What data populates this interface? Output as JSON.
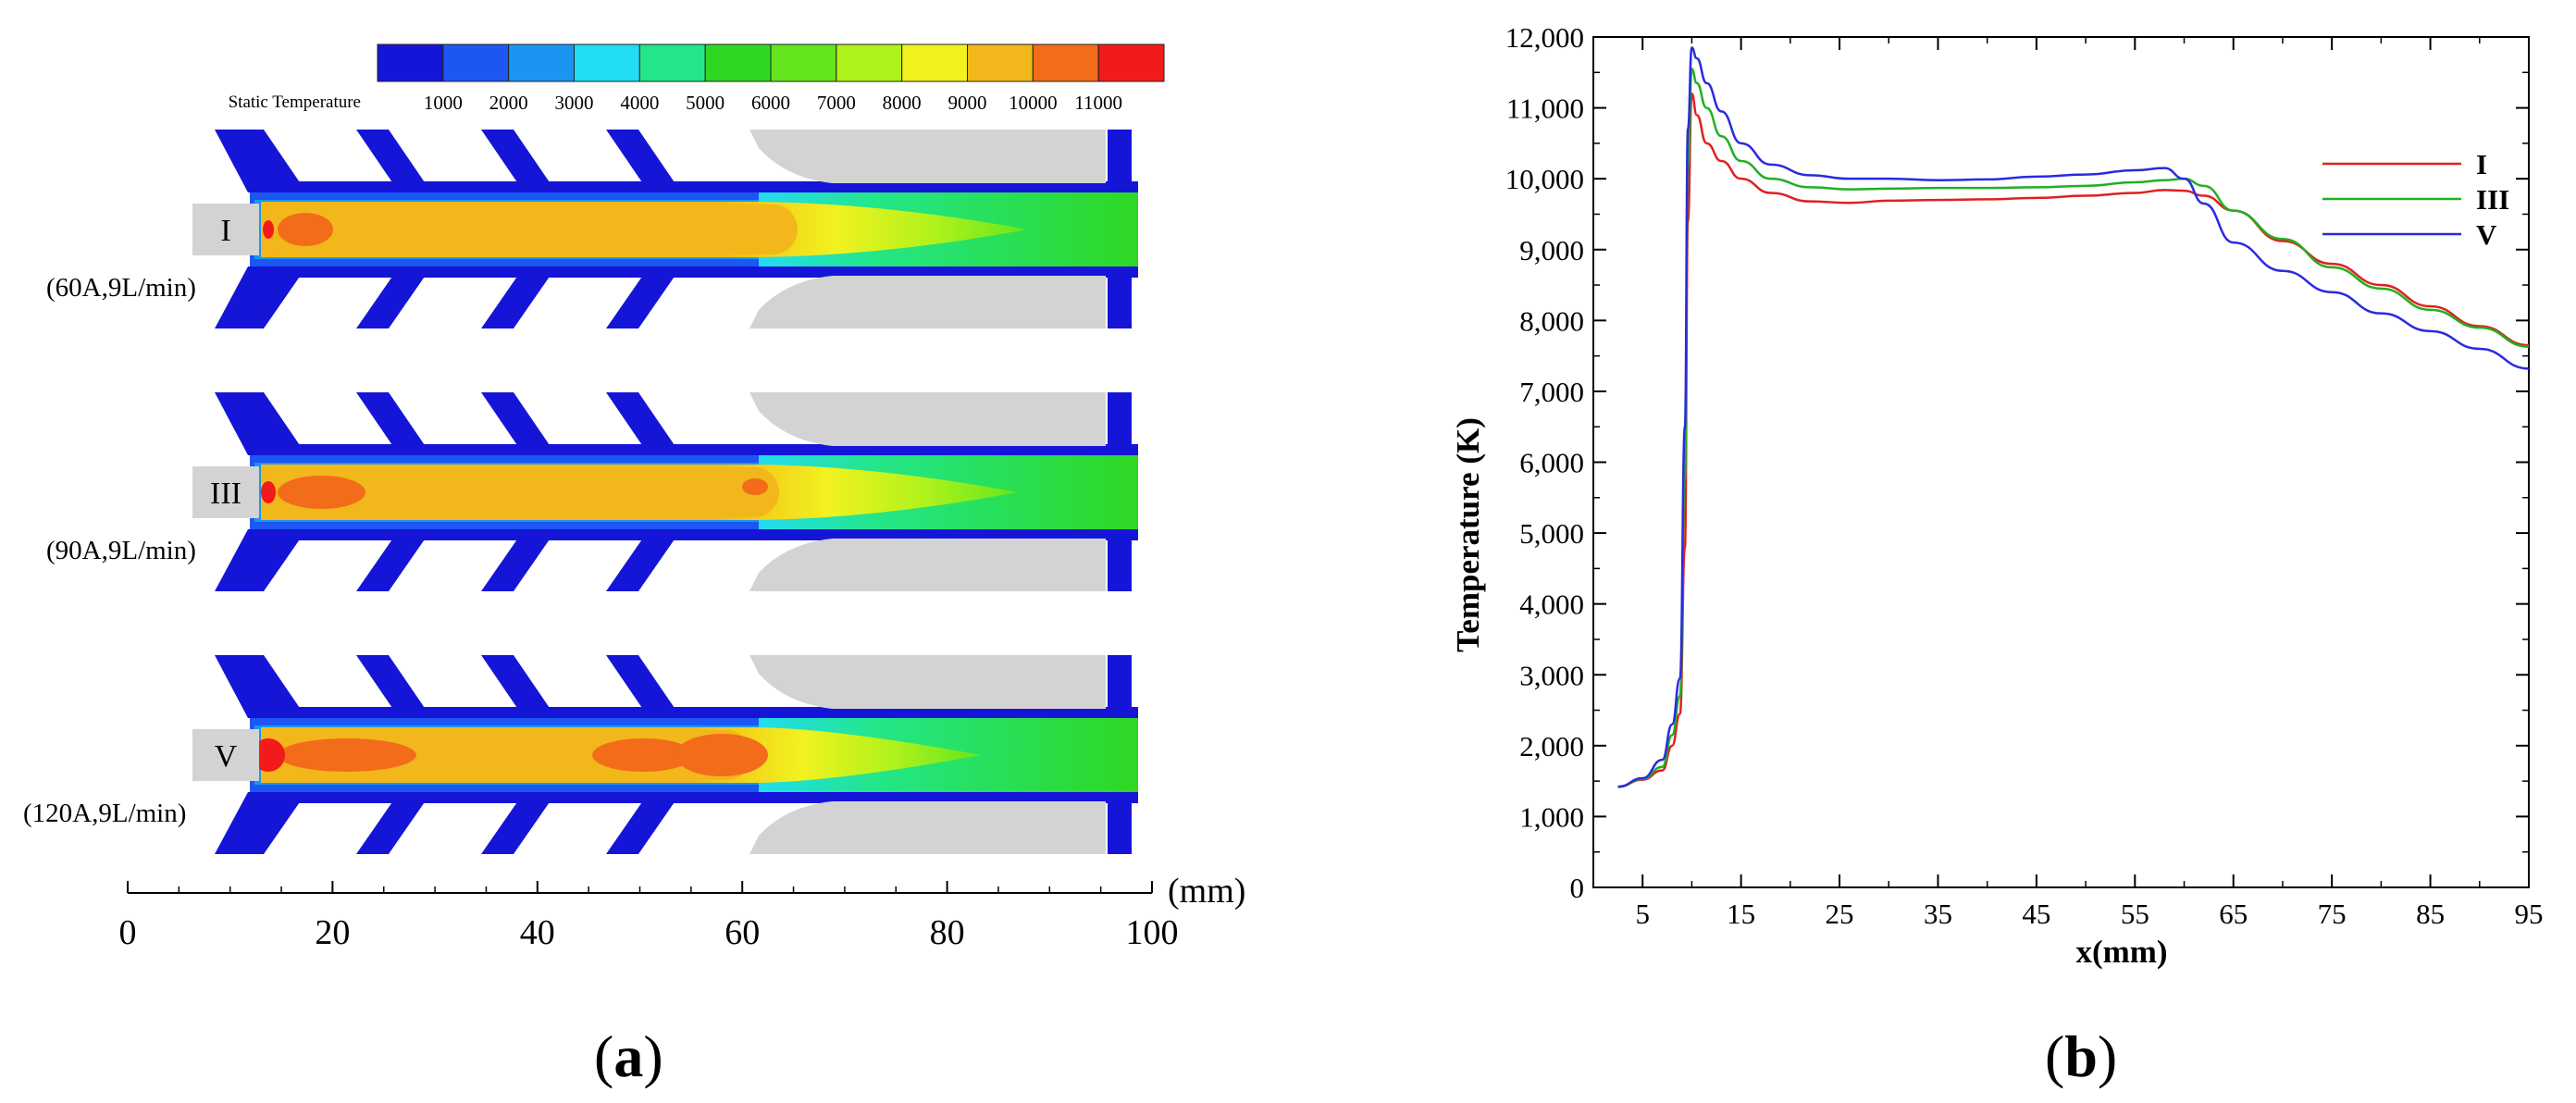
{
  "panel_a": {
    "colorbar": {
      "label": "Static Temperature",
      "ticks": [
        "1000",
        "2000",
        "3000",
        "4000",
        "5000",
        "6000",
        "7000",
        "8000",
        "9000",
        "10000",
        "11000"
      ],
      "colors": [
        "#1515d8",
        "#1c57f2",
        "#1a96f2",
        "#22dcf2",
        "#23e68a",
        "#2ed822",
        "#63e51e",
        "#aef21c",
        "#f2f21f",
        "#f2b71a",
        "#f26c1a",
        "#f21a1a"
      ]
    },
    "cases": [
      {
        "label": "I",
        "condition": "(60A,9L/min)"
      },
      {
        "label": "III",
        "condition": "(90A,9L/min)"
      },
      {
        "label": "V",
        "condition": "(120A,9L/min)"
      }
    ],
    "axis": {
      "ticks": [
        "0",
        "20",
        "40",
        "60",
        "80",
        "100"
      ],
      "unit": "(mm)"
    },
    "caption_letter": "a"
  },
  "chart_data": {
    "type": "line",
    "xlabel": "x(mm)",
    "ylabel": "Temperature (K)",
    "xlim": [
      0,
      95
    ],
    "ylim": [
      0,
      12000
    ],
    "x_ticks": [
      5,
      15,
      25,
      35,
      45,
      55,
      65,
      75,
      85,
      95
    ],
    "y_ticks": [
      0,
      1000,
      2000,
      3000,
      4000,
      5000,
      6000,
      7000,
      8000,
      9000,
      10000,
      11000,
      12000
    ],
    "y_tick_labels": [
      "0",
      "1,000",
      "2,000",
      "3,000",
      "4,000",
      "5,000",
      "6,000",
      "7,000",
      "8,000",
      "9,000",
      "10,000",
      "11,000",
      "12,000"
    ],
    "legend_position": "top-right",
    "series": [
      {
        "name": "I",
        "color": "#e02020",
        "x": [
          2.5,
          5,
          7,
          8,
          8.8,
          9.3,
          9.6,
          10,
          10.5,
          11.5,
          13,
          15,
          18,
          22,
          26,
          30,
          35,
          40,
          45,
          50,
          55,
          58,
          60,
          62,
          65,
          70,
          75,
          80,
          85,
          90,
          95
        ],
        "y": [
          1420,
          1520,
          1650,
          2000,
          2450,
          4800,
          9400,
          11200,
          10900,
          10500,
          10250,
          10000,
          9800,
          9680,
          9660,
          9690,
          9700,
          9710,
          9730,
          9760,
          9800,
          9840,
          9830,
          9760,
          9550,
          9120,
          8800,
          8500,
          8200,
          7920,
          7650
        ]
      },
      {
        "name": "III",
        "color": "#20b020",
        "x": [
          2.5,
          5,
          7,
          8,
          8.8,
          9.3,
          9.6,
          10,
          10.5,
          11.5,
          13,
          15,
          18,
          22,
          26,
          30,
          35,
          40,
          45,
          50,
          55,
          58,
          60,
          62,
          65,
          70,
          75,
          80,
          85,
          90,
          95
        ],
        "y": [
          1420,
          1530,
          1700,
          2150,
          2700,
          5800,
          10200,
          11550,
          11350,
          11000,
          10600,
          10250,
          10000,
          9880,
          9850,
          9860,
          9870,
          9870,
          9880,
          9900,
          9950,
          9980,
          10000,
          9900,
          9550,
          9150,
          8750,
          8450,
          8150,
          7900,
          7630
        ]
      },
      {
        "name": "V",
        "color": "#2a2ae0",
        "x": [
          2.5,
          5,
          7,
          8,
          8.8,
          9.3,
          9.6,
          10,
          10.5,
          11.5,
          13,
          15,
          18,
          22,
          26,
          30,
          35,
          40,
          45,
          50,
          55,
          58,
          60,
          62,
          65,
          70,
          75,
          80,
          85,
          90,
          95
        ],
        "y": [
          1420,
          1540,
          1800,
          2300,
          2950,
          6500,
          10700,
          11850,
          11700,
          11350,
          10950,
          10500,
          10200,
          10050,
          10000,
          10000,
          9980,
          9990,
          10030,
          10060,
          10120,
          10150,
          10000,
          9650,
          9100,
          8700,
          8400,
          8100,
          7850,
          7600,
          7320
        ]
      }
    ],
    "caption_letter": "b"
  }
}
